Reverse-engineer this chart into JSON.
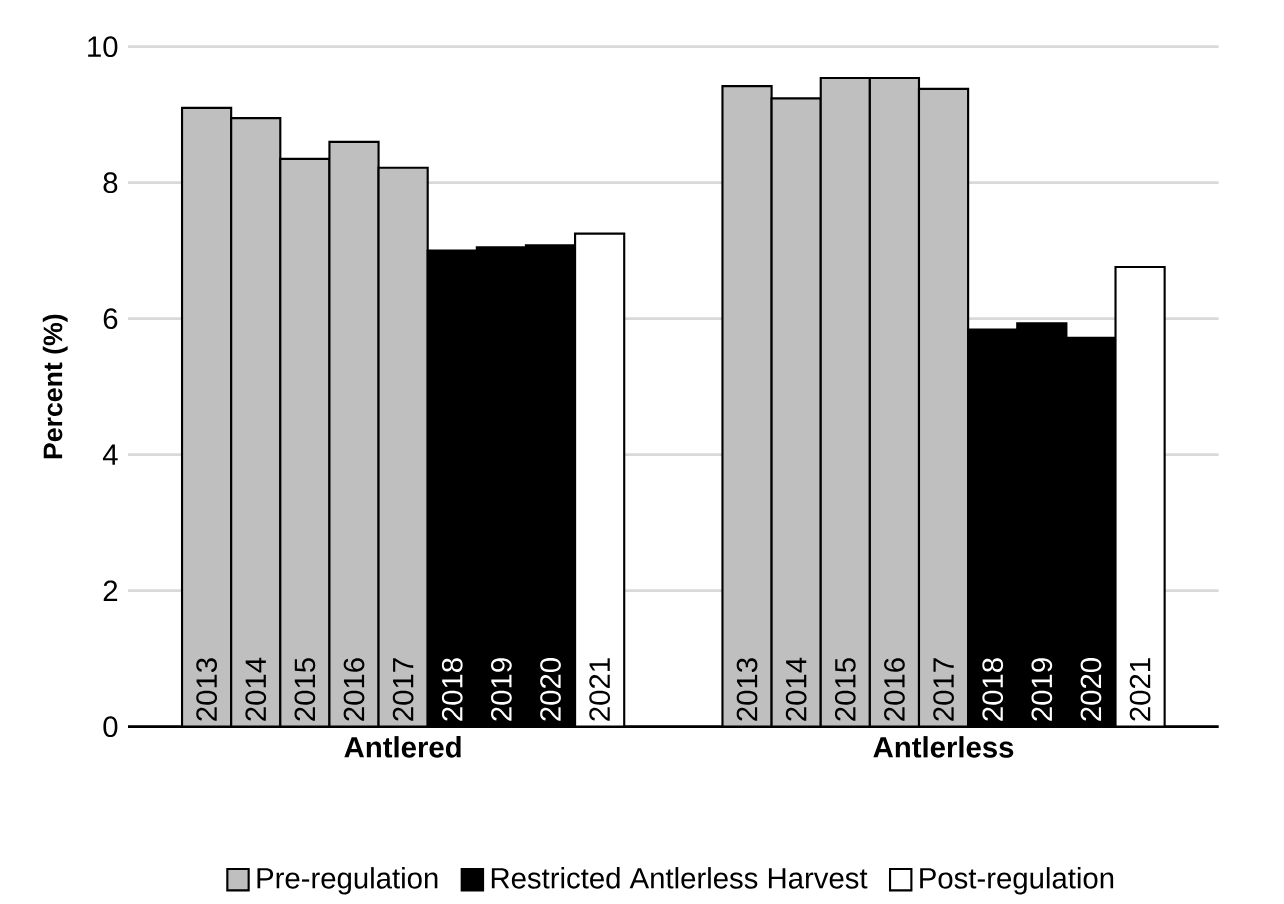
{
  "chart_data": {
    "type": "bar",
    "ylabel": "Percent (%)",
    "categories": [
      "2013",
      "2014",
      "2015",
      "2016",
      "2017",
      "2018",
      "2019",
      "2020",
      "2021",
      null,
      null,
      "2013",
      "2014",
      "2015",
      "2016",
      "2017",
      "2018",
      "2019",
      "2020",
      "2021"
    ],
    "series": [
      {
        "name": "Pre-regulation",
        "color": "#bfbfbf",
        "values": [
          9.1,
          8.95,
          8.35,
          8.6,
          8.22,
          null,
          null,
          null,
          null,
          null,
          null,
          9.42,
          9.24,
          9.54,
          9.54,
          9.38,
          null,
          null,
          null,
          null
        ]
      },
      {
        "name": "Restricted Antlerless Harvest",
        "color": "#000000",
        "values": [
          null,
          null,
          null,
          null,
          null,
          7.0,
          7.05,
          7.08,
          null,
          null,
          null,
          null,
          null,
          null,
          null,
          null,
          5.84,
          5.93,
          5.72,
          null
        ]
      },
      {
        "name": "Post-regulation",
        "color": "#ffffff",
        "values": [
          null,
          null,
          null,
          null,
          null,
          null,
          null,
          null,
          7.25,
          null,
          null,
          null,
          null,
          null,
          null,
          null,
          null,
          null,
          null,
          6.76
        ]
      }
    ],
    "annotations": [
      "Antlered",
      "Antlerless"
    ],
    "ylim": [
      0,
      10
    ],
    "yticks": [
      0,
      2,
      4,
      6,
      8,
      10
    ],
    "grid": "y",
    "legend": "bottom"
  }
}
